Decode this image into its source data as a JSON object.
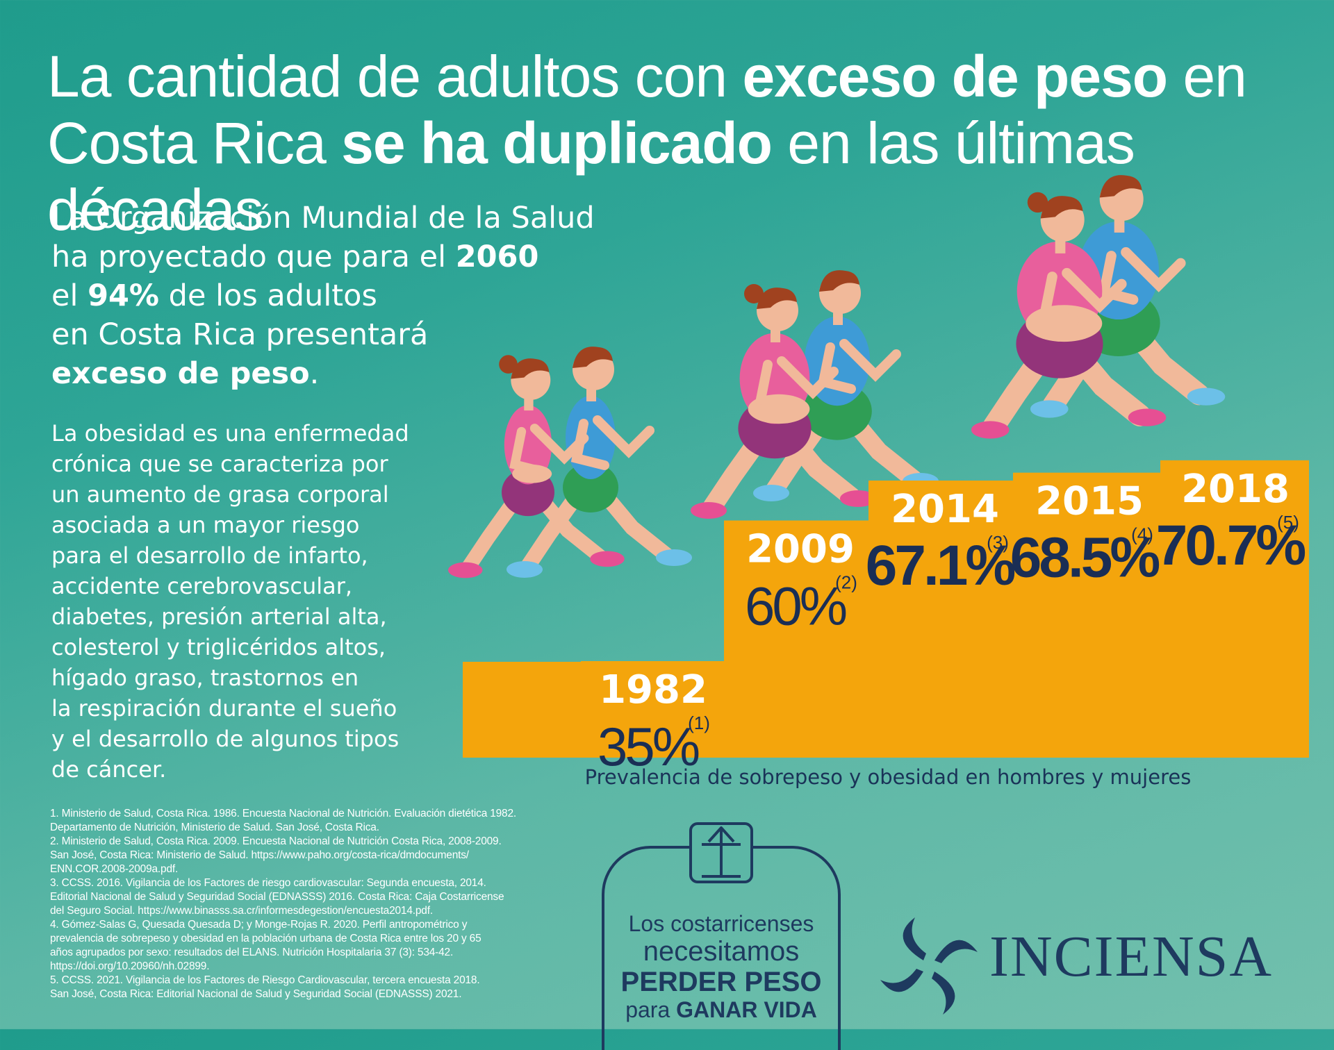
{
  "title": {
    "p1": "La cantidad de adultos con ",
    "b1": "exceso de peso",
    "p2": " en",
    "p3": "Costa Rica ",
    "b2": "se ha duplicado",
    "p4": " en las últimas décadas"
  },
  "lead": {
    "l1": "La Organización Mundial de la Salud",
    "l2": "ha proyectado que para el ",
    "year": "2060",
    "l3a": "el ",
    "pct": "94%",
    "l3b": " de los adultos",
    "l4": "en Costa Rica presentará",
    "l5": "exceso de peso",
    "l5end": "."
  },
  "body": [
    "La obesidad es una enfermedad",
    "crónica que se caracteriza por",
    "un aumento de grasa corporal",
    "asociada a un mayor riesgo",
    "para el desarrollo de infarto,",
    "accidente cerebrovascular,",
    "diabetes, presión arterial alta,",
    "colesterol y triglicéridos altos,",
    "hígado graso, trastornos en",
    "la respiración durante el sueño",
    "y el desarrollo de algunos tipos",
    "de cáncer."
  ],
  "chart_data": {
    "type": "bar",
    "title": "",
    "caption": "Prevalencia de sobrepeso y obesidad en hombres y mujeres",
    "categories": [
      "1982",
      "2009",
      "2014",
      "2015",
      "2018"
    ],
    "values": [
      35,
      60,
      67.1,
      68.5,
      70.7
    ],
    "value_labels": [
      "35%",
      "60%",
      "67.1%",
      "68.5%",
      "70.7%"
    ],
    "refs": [
      "(1)",
      "(2)",
      "(3)",
      "(4)",
      "(5)"
    ],
    "unit": "%",
    "bar_color": "#f4a50c"
  },
  "references": [
    "1. Ministerio de Salud, Costa Rica. 1986. Encuesta Nacional de Nutrición. Evaluación dietética 1982.",
    "Departamento de Nutrición, Ministerio de Salud. San José, Costa Rica.",
    "2. Ministerio de Salud, Costa Rica. 2009. Encuesta Nacional de Nutrición Costa Rica, 2008-2009.",
    "San José, Costa Rica: Ministerio de Salud. https://www.paho.org/costa-rica/dmdocuments/",
    "ENN.COR.2008-2009a.pdf.",
    "3. CCSS. 2016. Vigilancia de los Factores de riesgo cardiovascular: Segunda encuesta, 2014.",
    "Editorial Nacional de Salud y Seguridad Social (EDNASSS) 2016. Costa Rica: Caja Costarricense",
    "del Seguro Social. https://www.binasss.sa.cr/informesdegestion/encuesta2014.pdf.",
    "4. Gómez-Salas G, Quesada Quesada D; y Monge-Rojas R. 2020. Perfil antropométrico y",
    "prevalencia de sobrepeso y obesidad en la población urbana de Costa Rica entre los 20 y 65",
    "años agrupados por sexo: resultados del ELANS. Nutrición Hospitalaria 37 (3): 534-42.",
    "https://doi.org/10.20960/nh.02899.",
    "5. CCSS. 2021. Vigilancia de los Factores de Riesgo Cardiovascular, tercera encuesta 2018.",
    "San José, Costa Rica: Editorial Nacional de Salud y Seguridad Social (EDNASSS) 2021."
  ],
  "badge": {
    "l1": "Los costarricenses",
    "l2": "necesitamos",
    "l3": "PERDER PESO",
    "l4a": "para ",
    "l4b": "GANAR VIDA"
  },
  "logo": {
    "text": "INCIENSA"
  },
  "colors": {
    "bg_top": "#1f9c8c",
    "bg_bottom": "#72c0ad",
    "bar": "#f4a50c",
    "navy": "#1e3a5f",
    "skin": "#f1b99a",
    "pink": "#e85f9c",
    "blue_shirt": "#3e9bd6",
    "green_shorts": "#2f9e55",
    "purple": "#93347a"
  }
}
